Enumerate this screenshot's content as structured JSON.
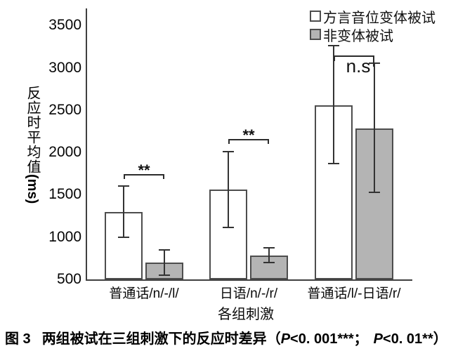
{
  "chart_data": {
    "type": "bar",
    "title": "",
    "xlabel": "各组刺激",
    "ylabel": "反应时平均值",
    "ylabel_unit": "(ms)",
    "ylim": [
      500,
      3500
    ],
    "yticks": [
      500,
      1000,
      1500,
      2000,
      2500,
      3000,
      3500
    ],
    "grid": false,
    "legend_position": "top-right",
    "categories": [
      "普通话/n/-/l/",
      "日语/n/-/r/",
      "普通话/l/-日语/r/"
    ],
    "series": [
      {
        "name": "方言音位变体被试",
        "fill": "#ffffff",
        "values": [
          1300,
          1560,
          2560
        ],
        "error_low": [
          1000,
          1115,
          1870
        ],
        "error_high": [
          1600,
          2010,
          3260
        ]
      },
      {
        "name": "非变体被试",
        "fill": "#b4b4b4",
        "values": [
          695,
          780,
          2280
        ],
        "error_low": [
          550,
          700,
          1530
        ],
        "error_high": [
          845,
          870,
          3050
        ]
      }
    ],
    "significance_by_group": [
      "**",
      "**",
      "n.s"
    ]
  },
  "figure_caption": {
    "prefix": "图 3",
    "text": "两组被试在三组刺激下的反应时差异",
    "stats_open": "（",
    "p_symbol_1": "P",
    "stats_1": "<0. 001***；",
    "p_symbol_2": "P",
    "stats_2": "<0. 01**）"
  }
}
